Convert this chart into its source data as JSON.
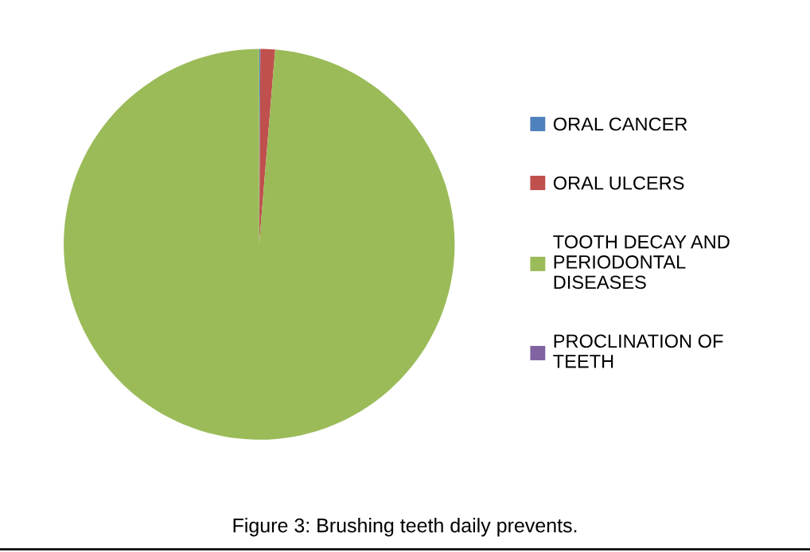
{
  "chart_data": {
    "type": "pie",
    "categories": [
      "ORAL CANCER",
      "ORAL ULCERS",
      "TOOTH DECAY AND PERIODONTAL DISEASES",
      "PROCLINATION OF TEETH"
    ],
    "values": [
      0.1,
      1.2,
      98.7,
      0
    ],
    "colors": [
      "#4f81bd",
      "#c0504d",
      "#9bbb59",
      "#8064a2"
    ],
    "legend": "right",
    "annotations": [
      "Figure 3: Brushing teeth daily prevents."
    ]
  }
}
